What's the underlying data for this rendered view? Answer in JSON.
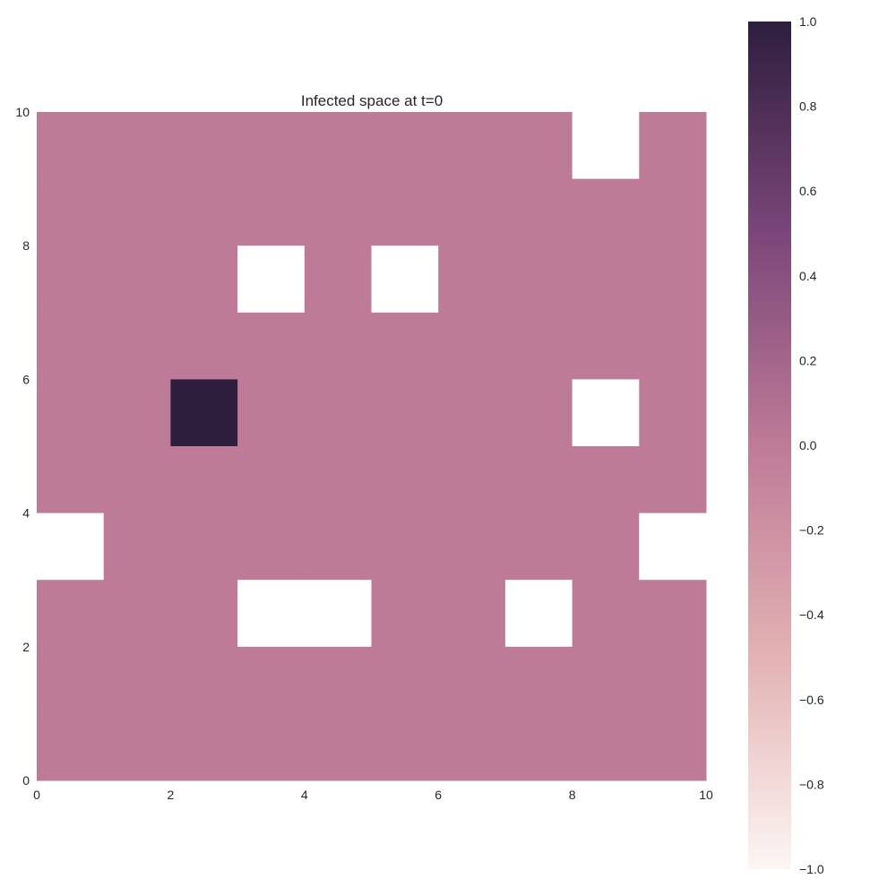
{
  "chart_data": {
    "type": "heatmap",
    "title": "Infected space at t=0",
    "xlabel": "",
    "ylabel": "",
    "xlim": [
      0,
      10
    ],
    "ylim": [
      0,
      10
    ],
    "x_ticks": [
      "0",
      "2",
      "4",
      "6",
      "8",
      "10"
    ],
    "y_ticks": [
      "0",
      "2",
      "4",
      "6",
      "8",
      "10"
    ],
    "rows_top_to_bottom": [
      [
        0,
        0,
        0,
        0,
        0,
        0,
        0,
        0,
        null,
        0
      ],
      [
        0,
        0,
        0,
        0,
        0,
        0,
        0,
        0,
        0,
        0
      ],
      [
        0,
        0,
        0,
        null,
        0,
        null,
        0,
        0,
        0,
        0
      ],
      [
        0,
        0,
        0,
        0,
        0,
        0,
        0,
        0,
        0,
        0
      ],
      [
        0,
        0,
        1,
        0,
        0,
        0,
        0,
        0,
        null,
        0
      ],
      [
        0,
        0,
        0,
        0,
        0,
        0,
        0,
        0,
        0,
        0
      ],
      [
        null,
        0,
        0,
        0,
        0,
        0,
        0,
        0,
        0,
        null
      ],
      [
        0,
        0,
        0,
        null,
        null,
        0,
        0,
        null,
        0,
        0
      ],
      [
        0,
        0,
        0,
        0,
        0,
        0,
        0,
        0,
        0,
        0
      ],
      [
        0,
        0,
        0,
        0,
        0,
        0,
        0,
        0,
        0,
        0
      ]
    ],
    "colorbar": {
      "vmin": -1.0,
      "vmax": 1.0,
      "ticks": [
        1.0,
        0.8,
        0.6,
        0.4,
        0.2,
        0.0,
        -0.2,
        -0.4,
        -0.6,
        -0.8,
        -1.0
      ],
      "tick_labels": [
        "1.0",
        "0.8",
        "0.6",
        "0.4",
        "0.2",
        "0.0",
        "−0.2",
        "−0.4",
        "−0.6",
        "−0.8",
        "−1.0"
      ],
      "colors": {
        "low": "#fcf6f3",
        "lowmid": "#e3b2b3",
        "mid": "#be7b97",
        "highmid": "#7b4679",
        "high": "#2d1e3e"
      }
    },
    "grid": false,
    "masked_cell_color": "#ffffff"
  }
}
